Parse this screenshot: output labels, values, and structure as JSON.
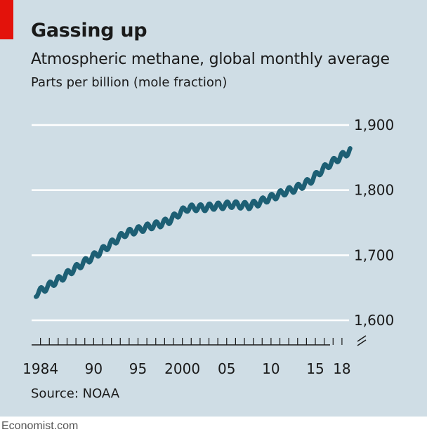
{
  "header": {
    "title": "Gassing up",
    "subtitle": "Atmospheric methane, global monthly average",
    "unit": "Parts per billion (mole fraction)"
  },
  "footer": {
    "source": "Source: NOAA",
    "credit": "Economist.com"
  },
  "colors": {
    "accent": "#e3120b",
    "background": "#cfdde5",
    "line": "#1d5f74",
    "gridline": "#ffffff"
  },
  "chart_data": {
    "type": "line",
    "title": "Gassing up",
    "subtitle": "Atmospheric methane, global monthly average",
    "ylabel": "Parts per billion (mole fraction)",
    "xlabel": "",
    "ylim": [
      1600,
      1900
    ],
    "xlim": [
      1983,
      2018.8
    ],
    "y_axis_broken": true,
    "yticks": [
      1600,
      1700,
      1800,
      1900
    ],
    "ytick_labels": [
      "1,600",
      "1,700",
      "1,800",
      "1,900"
    ],
    "xticks": [
      1984,
      1990,
      1995,
      2000,
      2005,
      2010,
      2015,
      2018
    ],
    "xtick_labels": [
      "1984",
      "90",
      "95",
      "2000",
      "05",
      "10",
      "15",
      "18"
    ],
    "grid": true,
    "legend": "none",
    "seasonal_amplitude_ppb": 5,
    "series": [
      {
        "annual_mean": {
          "x": [
            1983.5,
            1984.5,
            1985.5,
            1986.5,
            1987.5,
            1988.5,
            1989.5,
            1990.5,
            1991.5,
            1992.5,
            1993.5,
            1994.5,
            1995.5,
            1996.5,
            1997.5,
            1998.5,
            1999.5,
            2000.5,
            2001.5,
            2002.5,
            2003.5,
            2004.5,
            2005.5,
            2006.5,
            2007.5,
            2008.5,
            2009.5,
            2010.5,
            2011.5,
            2012.5,
            2013.5,
            2014.5,
            2015.5,
            2016.5,
            2017.5
          ],
          "y": [
            1641,
            1649,
            1658,
            1666,
            1676,
            1685,
            1694,
            1703,
            1713,
            1723,
            1733,
            1737,
            1741,
            1745,
            1748,
            1753,
            1763,
            1772,
            1773,
            1773,
            1775,
            1776,
            1778,
            1777,
            1776,
            1780,
            1786,
            1791,
            1797,
            1801,
            1807,
            1815,
            1828,
            1839,
            1848
          ]
        }
      }
    ]
  }
}
